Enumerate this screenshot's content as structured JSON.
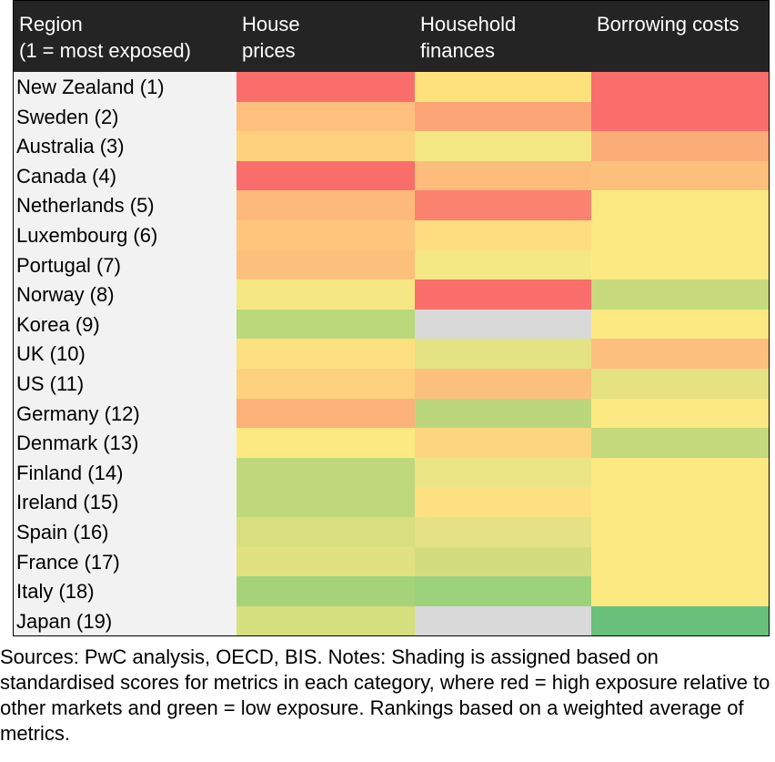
{
  "chart_data": {
    "type": "heatmap",
    "columns": [
      "Region\n(1 = most exposed)",
      "House\nprices",
      "Household\nfinances",
      "Borrowing costs"
    ],
    "rows": [
      {
        "region": "New Zealand (1)",
        "house_prices": "#f96e6b",
        "household_finances": "#fde27b",
        "borrowing_costs": "#f96e6b"
      },
      {
        "region": "Sweden (2)",
        "house_prices": "#fec07c",
        "household_finances": "#fca577",
        "borrowing_costs": "#f96e6b"
      },
      {
        "region": "Australia (3)",
        "house_prices": "#fed17e",
        "household_finances": "#f3e883",
        "borrowing_costs": "#fbad78"
      },
      {
        "region": "Canada (4)",
        "house_prices": "#f96e6b",
        "household_finances": "#fdbc7b",
        "borrowing_costs": "#fdc07c"
      },
      {
        "region": "Netherlands (5)",
        "house_prices": "#fdb97b",
        "household_finances": "#fa826f",
        "borrowing_costs": "#fde981"
      },
      {
        "region": "Luxembourg (6)",
        "house_prices": "#fec67d",
        "household_finances": "#fedd80",
        "borrowing_costs": "#fde981"
      },
      {
        "region": "Portugal (7)",
        "house_prices": "#fdc07c",
        "household_finances": "#f3e884",
        "borrowing_costs": "#fde981"
      },
      {
        "region": "Norway (8)",
        "house_prices": "#f5e783",
        "household_finances": "#f96e6b",
        "borrowing_costs": "#c7d97d"
      },
      {
        "region": "Korea (9)",
        "house_prices": "#bad97a",
        "household_finances": "#d9d9d9",
        "borrowing_costs": "#fde981"
      },
      {
        "region": "UK (10)",
        "house_prices": "#fde07f",
        "household_finances": "#e4e383",
        "borrowing_costs": "#fcc07c"
      },
      {
        "region": "US (11)",
        "house_prices": "#fed17e",
        "household_finances": "#fcc07c",
        "borrowing_costs": "#e5e282"
      },
      {
        "region": "Germany (12)",
        "house_prices": "#fdb27a",
        "household_finances": "#bcd77b",
        "borrowing_costs": "#fde981"
      },
      {
        "region": "Denmark (13)",
        "house_prices": "#fde981",
        "household_finances": "#fed57f",
        "borrowing_costs": "#c4d87c"
      },
      {
        "region": "Finland (14)",
        "house_prices": "#c0d87c",
        "household_finances": "#ebe585",
        "borrowing_costs": "#fde981"
      },
      {
        "region": "Ireland (15)",
        "house_prices": "#c0d87c",
        "household_finances": "#fde181",
        "borrowing_costs": "#fde981"
      },
      {
        "region": "Spain (16)",
        "house_prices": "#d9de7e",
        "household_finances": "#e4e284",
        "borrowing_costs": "#fde981"
      },
      {
        "region": "France (17)",
        "house_prices": "#e1e181",
        "household_finances": "#d4dc80",
        "borrowing_costs": "#fde981"
      },
      {
        "region": "Italy (18)",
        "house_prices": "#a5d37a",
        "household_finances": "#9bd27a",
        "borrowing_costs": "#fde981"
      },
      {
        "region": "Japan (19)",
        "house_prices": "#d5df7e",
        "household_finances": "#d9d9d9",
        "borrowing_costs": "#69c07a"
      }
    ],
    "legend": "red = high exposure relative to other markets, green = low exposure"
  },
  "notes": "Sources: PwC analysis, OECD, BIS. Notes: Shading is assigned based on standardised scores for metrics in each category, where red = high exposure relative to other markets and green = low exposure. Rankings based on a weighted average of metrics."
}
